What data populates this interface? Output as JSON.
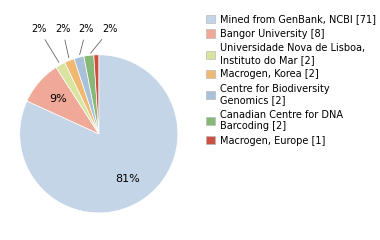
{
  "chart_data": {
    "type": "pie",
    "categories": [
      "Mined from GenBank, NCBI [71]",
      "Bangor University [8]",
      "Universidade Nova de Lisboa,\nInstituto do Mar [2]",
      "Macrogen, Korea [2]",
      "Centre for Biodiversity\nGenomics [2]",
      "Canadian Centre for DNA\nBarcoding [2]",
      "Macrogen, Europe [1]"
    ],
    "values": [
      81,
      9,
      2,
      2,
      2,
      2,
      1
    ],
    "value_labels": [
      "81%",
      "9%",
      "2%",
      "2%",
      "2%",
      "2%",
      null
    ],
    "colors": [
      "#c5d5e8",
      "#f0a898",
      "#d8e4a0",
      "#f0b870",
      "#a8c0d8",
      "#88b878",
      "#cc5040"
    ],
    "legend": "upper left"
  }
}
